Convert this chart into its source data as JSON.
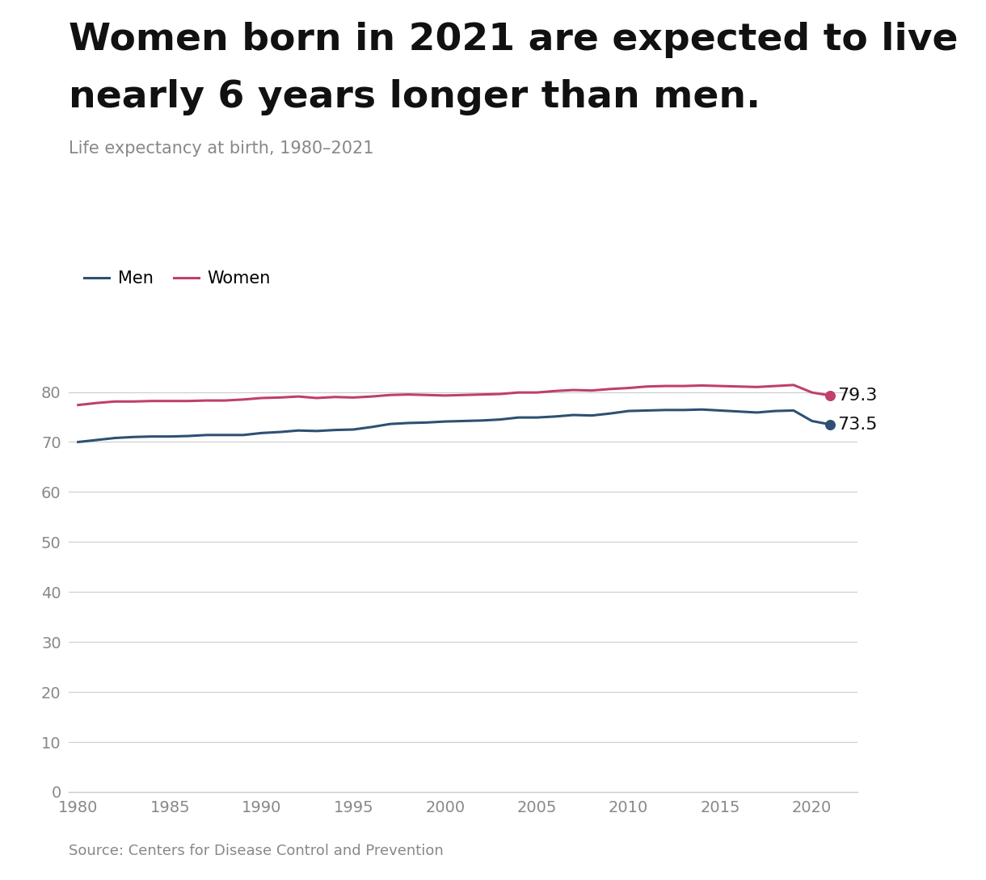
{
  "title_line1": "Women born in 2021 are expected to live",
  "title_line2": "nearly 6 years longer than men.",
  "subtitle": "Life expectancy at birth, 1980–2021",
  "source": "Source: Centers for Disease Control and Prevention",
  "men_color": "#2E5073",
  "women_color": "#C0406A",
  "men_label": "Men",
  "women_label": "Women",
  "men_final_value": "73.5",
  "women_final_value": "79.3",
  "background_color": "#ffffff",
  "years": [
    1980,
    1981,
    1982,
    1983,
    1984,
    1985,
    1986,
    1987,
    1988,
    1989,
    1990,
    1991,
    1992,
    1993,
    1994,
    1995,
    1996,
    1997,
    1998,
    1999,
    2000,
    2001,
    2002,
    2003,
    2004,
    2005,
    2006,
    2007,
    2008,
    2009,
    2010,
    2011,
    2012,
    2013,
    2014,
    2015,
    2016,
    2017,
    2018,
    2019,
    2020,
    2021
  ],
  "men_values": [
    70.0,
    70.4,
    70.8,
    71.0,
    71.1,
    71.1,
    71.2,
    71.4,
    71.4,
    71.4,
    71.8,
    72.0,
    72.3,
    72.2,
    72.4,
    72.5,
    73.0,
    73.6,
    73.8,
    73.9,
    74.1,
    74.2,
    74.3,
    74.5,
    74.9,
    74.9,
    75.1,
    75.4,
    75.3,
    75.7,
    76.2,
    76.3,
    76.4,
    76.4,
    76.5,
    76.3,
    76.1,
    75.9,
    76.2,
    76.3,
    74.2,
    73.5
  ],
  "women_values": [
    77.4,
    77.8,
    78.1,
    78.1,
    78.2,
    78.2,
    78.2,
    78.3,
    78.3,
    78.5,
    78.8,
    78.9,
    79.1,
    78.8,
    79.0,
    78.9,
    79.1,
    79.4,
    79.5,
    79.4,
    79.3,
    79.4,
    79.5,
    79.6,
    79.9,
    79.9,
    80.2,
    80.4,
    80.3,
    80.6,
    80.8,
    81.1,
    81.2,
    81.2,
    81.3,
    81.2,
    81.1,
    81.0,
    81.2,
    81.4,
    79.9,
    79.3
  ],
  "ylim": [
    0,
    88
  ],
  "yticks": [
    0,
    10,
    20,
    30,
    40,
    50,
    60,
    70,
    80
  ],
  "xlim": [
    1979.5,
    2022.5
  ],
  "xticks": [
    1980,
    1985,
    1990,
    1995,
    2000,
    2005,
    2010,
    2015,
    2020
  ],
  "grid_color": "#cccccc",
  "tick_color": "#888888",
  "title_fontsize": 34,
  "subtitle_fontsize": 15,
  "endlabel_fontsize": 16,
  "tick_fontsize": 14,
  "source_fontsize": 13,
  "legend_fontsize": 15
}
